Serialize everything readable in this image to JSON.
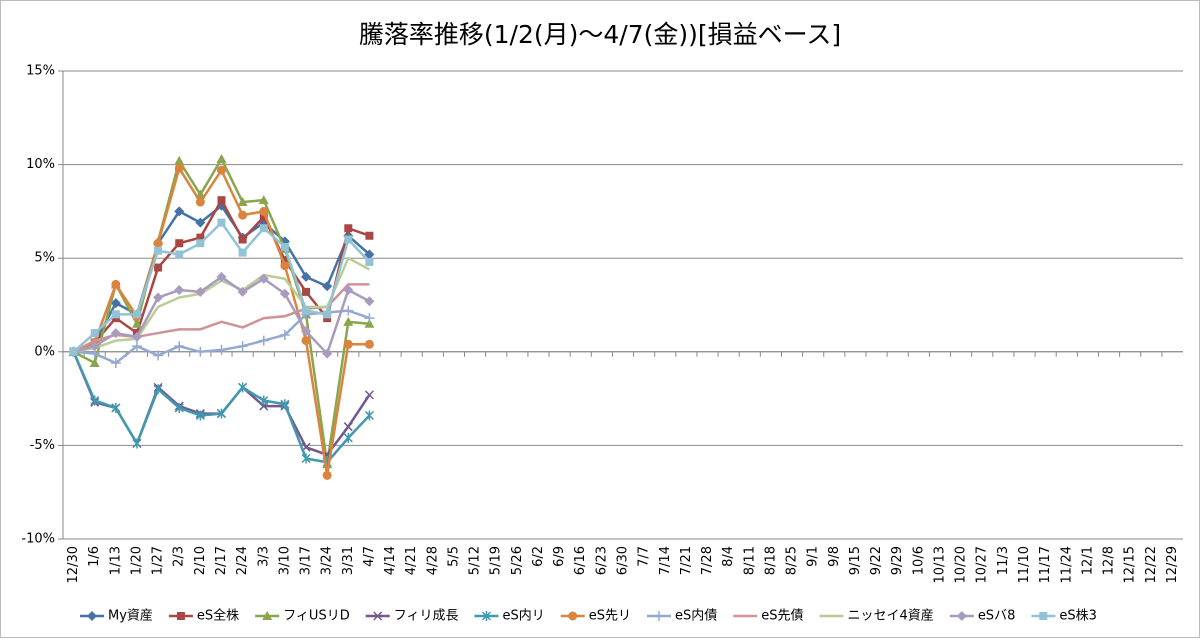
{
  "chart_data": {
    "type": "line",
    "title": "騰落率推移(1/2(月)～4/7(金))[損益ベース]",
    "categories": [
      "12/30",
      "1/6",
      "1/13",
      "1/20",
      "1/27",
      "2/3",
      "2/10",
      "2/17",
      "2/24",
      "3/3",
      "3/10",
      "3/17",
      "3/24",
      "3/31",
      "4/7",
      "4/14",
      "4/21",
      "4/28",
      "5/5",
      "5/12",
      "5/19",
      "5/26",
      "6/2",
      "6/9",
      "6/16",
      "6/23",
      "6/30",
      "7/7",
      "7/14",
      "7/21",
      "7/28",
      "8/4",
      "8/11",
      "8/18",
      "8/25",
      "9/1",
      "9/8",
      "9/15",
      "9/22",
      "9/29",
      "10/6",
      "10/13",
      "10/20",
      "10/27",
      "11/3",
      "11/10",
      "11/17",
      "11/24",
      "12/1",
      "12/8",
      "12/15",
      "12/22",
      "12/29"
    ],
    "ylim": [
      -10,
      15
    ],
    "yticks": [
      {
        "value": -10,
        "label": "-10%"
      },
      {
        "value": -5,
        "label": "-5%"
      },
      {
        "value": 0,
        "label": "0%"
      },
      {
        "value": 5,
        "label": "5%"
      },
      {
        "value": 10,
        "label": "10%"
      },
      {
        "value": 15,
        "label": "15%"
      }
    ],
    "grid": true,
    "legend": "bottom",
    "series": [
      {
        "name": "My資産",
        "color": "#4572a7",
        "marker": "diamond",
        "values": [
          0,
          0.5,
          2.6,
          2.0,
          5.8,
          7.5,
          6.9,
          7.8,
          6.1,
          6.9,
          5.9,
          4.0,
          3.5,
          6.2,
          5.2,
          null,
          null,
          null,
          null,
          null,
          null,
          null,
          null,
          null,
          null,
          null,
          null,
          null,
          null,
          null,
          null,
          null,
          null,
          null,
          null,
          null,
          null,
          null,
          null,
          null,
          null,
          null,
          null,
          null,
          null,
          null,
          null,
          null,
          null,
          null,
          null,
          null,
          null
        ]
      },
      {
        "name": "eS全株",
        "color": "#aa4643",
        "marker": "square",
        "values": [
          0,
          0.5,
          1.8,
          1.0,
          4.5,
          5.8,
          6.1,
          8.1,
          6.0,
          7.2,
          4.9,
          3.2,
          1.8,
          6.6,
          6.2,
          null,
          null,
          null,
          null,
          null,
          null,
          null,
          null,
          null,
          null,
          null,
          null,
          null,
          null,
          null,
          null,
          null,
          null,
          null,
          null,
          null,
          null,
          null,
          null,
          null,
          null,
          null,
          null,
          null,
          null,
          null,
          null,
          null,
          null,
          null,
          null,
          null,
          null
        ]
      },
      {
        "name": "フィUSリD",
        "color": "#89a54e",
        "marker": "triangle",
        "values": [
          0,
          -0.6,
          3.6,
          1.5,
          5.9,
          10.2,
          8.4,
          10.3,
          8.0,
          8.1,
          5.5,
          2.0,
          -6.0,
          1.6,
          1.5,
          null,
          null,
          null,
          null,
          null,
          null,
          null,
          null,
          null,
          null,
          null,
          null,
          null,
          null,
          null,
          null,
          null,
          null,
          null,
          null,
          null,
          null,
          null,
          null,
          null,
          null,
          null,
          null,
          null,
          null,
          null,
          null,
          null,
          null,
          null,
          null,
          null,
          null
        ]
      },
      {
        "name": "フィリ成長",
        "color": "#71588f",
        "marker": "x",
        "values": [
          0,
          -2.7,
          -3.0,
          -4.9,
          -1.9,
          -2.9,
          -3.3,
          -3.3,
          -1.9,
          -2.9,
          -2.9,
          -5.1,
          -5.5,
          -4.0,
          -2.3,
          null,
          null,
          null,
          null,
          null,
          null,
          null,
          null,
          null,
          null,
          null,
          null,
          null,
          null,
          null,
          null,
          null,
          null,
          null,
          null,
          null,
          null,
          null,
          null,
          null,
          null,
          null,
          null,
          null,
          null,
          null,
          null,
          null,
          null,
          null,
          null,
          null,
          null
        ]
      },
      {
        "name": "eS内リ",
        "color": "#4198af",
        "marker": "star",
        "values": [
          0,
          -2.6,
          -3.0,
          -4.9,
          -2.0,
          -3.0,
          -3.4,
          -3.3,
          -1.9,
          -2.6,
          -2.8,
          -5.7,
          -5.9,
          -4.6,
          -3.4,
          null,
          null,
          null,
          null,
          null,
          null,
          null,
          null,
          null,
          null,
          null,
          null,
          null,
          null,
          null,
          null,
          null,
          null,
          null,
          null,
          null,
          null,
          null,
          null,
          null,
          null,
          null,
          null,
          null,
          null,
          null,
          null,
          null,
          null,
          null,
          null,
          null,
          null
        ]
      },
      {
        "name": "eS先リ",
        "color": "#db843d",
        "marker": "circle",
        "values": [
          0,
          0.5,
          3.6,
          1.9,
          5.8,
          9.8,
          8.0,
          9.7,
          7.3,
          7.5,
          4.6,
          0.6,
          -6.6,
          0.4,
          0.4,
          null,
          null,
          null,
          null,
          null,
          null,
          null,
          null,
          null,
          null,
          null,
          null,
          null,
          null,
          null,
          null,
          null,
          null,
          null,
          null,
          null,
          null,
          null,
          null,
          null,
          null,
          null,
          null,
          null,
          null,
          null,
          null,
          null,
          null,
          null,
          null,
          null,
          null
        ]
      },
      {
        "name": "eS内債",
        "color": "#93a9cf",
        "marker": "plus",
        "values": [
          0,
          -0.1,
          -0.6,
          0.3,
          -0.2,
          0.3,
          0.0,
          0.1,
          0.3,
          0.6,
          0.9,
          2.0,
          2.1,
          2.2,
          1.8,
          null,
          null,
          null,
          null,
          null,
          null,
          null,
          null,
          null,
          null,
          null,
          null,
          null,
          null,
          null,
          null,
          null,
          null,
          null,
          null,
          null,
          null,
          null,
          null,
          null,
          null,
          null,
          null,
          null,
          null,
          null,
          null,
          null,
          null,
          null,
          null,
          null,
          null
        ]
      },
      {
        "name": "eS先債",
        "color": "#d19392",
        "values": [
          0,
          0.6,
          0.9,
          0.8,
          1.0,
          1.2,
          1.2,
          1.6,
          1.3,
          1.8,
          1.9,
          2.3,
          2.4,
          3.6,
          3.6,
          null,
          null,
          null,
          null,
          null,
          null,
          null,
          null,
          null,
          null,
          null,
          null,
          null,
          null,
          null,
          null,
          null,
          null,
          null,
          null,
          null,
          null,
          null,
          null,
          null,
          null,
          null,
          null,
          null,
          null,
          null,
          null,
          null,
          null,
          null,
          null,
          null,
          null
        ]
      },
      {
        "name": "ニッセイ4資産",
        "color": "#b9cd96",
        "values": [
          0,
          0.2,
          0.6,
          0.7,
          2.4,
          2.9,
          3.1,
          3.8,
          3.3,
          4.1,
          3.9,
          2.4,
          2.4,
          5.0,
          4.4,
          null,
          null,
          null,
          null,
          null,
          null,
          null,
          null,
          null,
          null,
          null,
          null,
          null,
          null,
          null,
          null,
          null,
          null,
          null,
          null,
          null,
          null,
          null,
          null,
          null,
          null,
          null,
          null,
          null,
          null,
          null,
          null,
          null,
          null,
          null,
          null,
          null,
          null
        ]
      },
      {
        "name": "eSバ8",
        "color": "#a99bbd",
        "marker": "diamond",
        "values": [
          0,
          0.3,
          1.0,
          0.8,
          2.9,
          3.3,
          3.2,
          4.0,
          3.2,
          3.9,
          3.1,
          1.1,
          -0.1,
          3.3,
          2.7,
          null,
          null,
          null,
          null,
          null,
          null,
          null,
          null,
          null,
          null,
          null,
          null,
          null,
          null,
          null,
          null,
          null,
          null,
          null,
          null,
          null,
          null,
          null,
          null,
          null,
          null,
          null,
          null,
          null,
          null,
          null,
          null,
          null,
          null,
          null,
          null,
          null,
          null
        ]
      },
      {
        "name": "eS株3",
        "color": "#91c3d5",
        "marker": "square",
        "values": [
          0,
          1.0,
          2.0,
          2.0,
          5.4,
          5.2,
          5.8,
          6.9,
          5.3,
          6.6,
          5.6,
          2.2,
          2.0,
          6.0,
          4.8,
          null,
          null,
          null,
          null,
          null,
          null,
          null,
          null,
          null,
          null,
          null,
          null,
          null,
          null,
          null,
          null,
          null,
          null,
          null,
          null,
          null,
          null,
          null,
          null,
          null,
          null,
          null,
          null,
          null,
          null,
          null,
          null,
          null,
          null,
          null,
          null,
          null,
          null
        ]
      }
    ]
  }
}
